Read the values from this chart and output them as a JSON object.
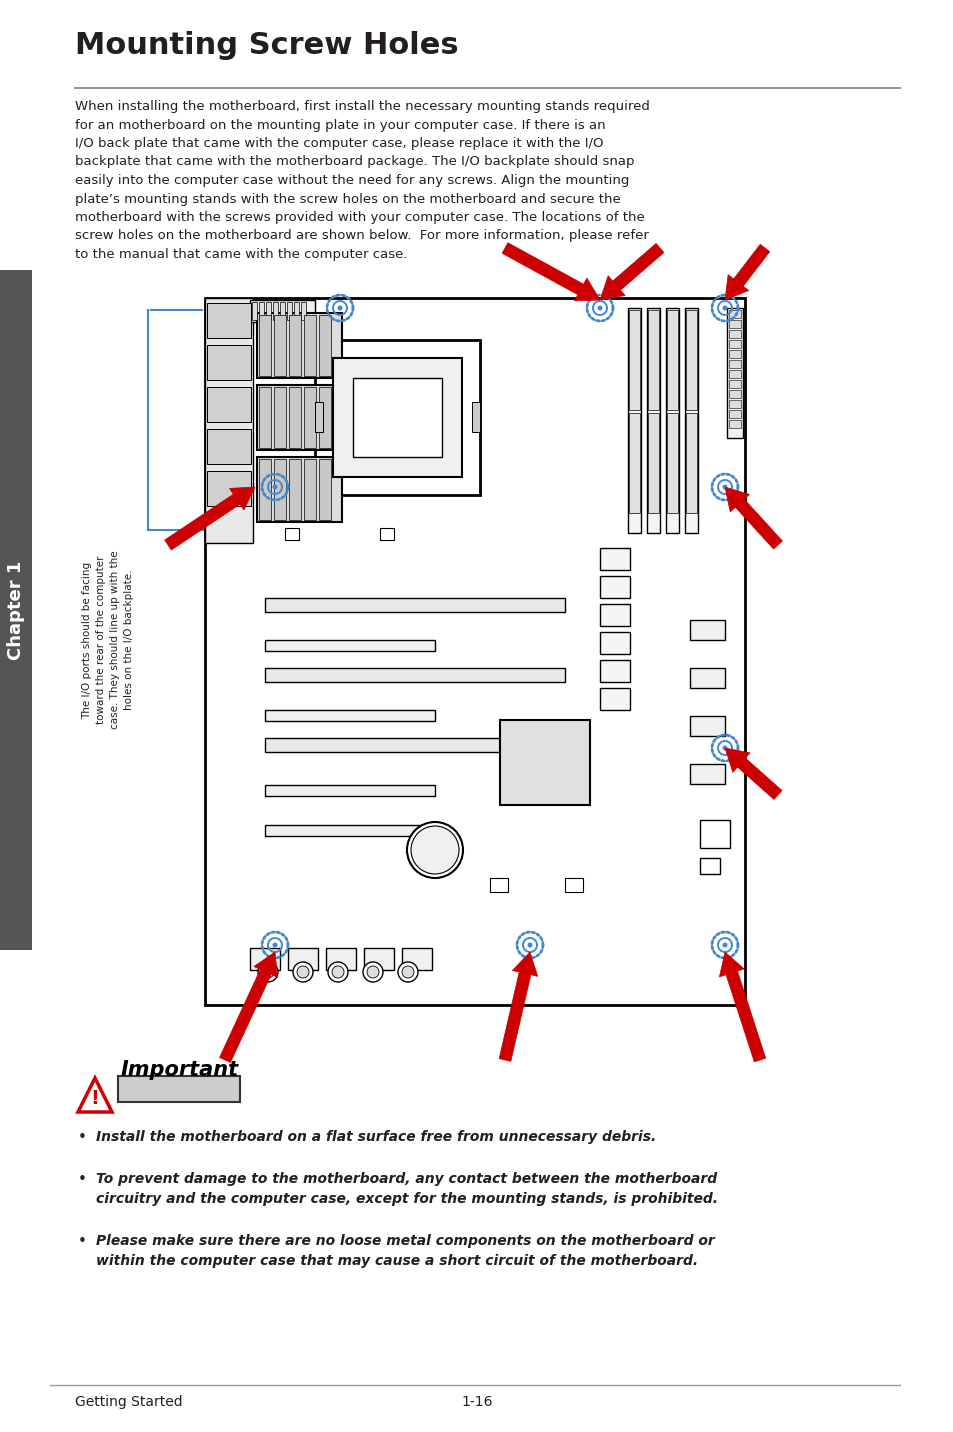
{
  "title": "Mounting Screw Holes",
  "body_text": "When installing the motherboard, first install the necessary mounting stands required\nfor an motherboard on the mounting plate in your computer case. If there is an\nI/O back plate that came with the computer case, please replace it with the I/O\nbackplate that came with the motherboard package. The I/O backplate should snap\neasily into the computer case without the need for any screws. Align the mounting\nplate’s mounting stands with the screw holes on the motherboard and secure the\nmotherboard with the screws provided with your computer case. The locations of the\nscrew holes on the motherboard are shown below.  For more information, please refer\nto the manual that came with the computer case.",
  "rotated_text": "The I/O ports should be facing\ntoward the rear of the computer\ncase. They should line up with the\nholes on the I/O backplate.",
  "important_label": "Important",
  "bullet1": "Install the motherboard on a flat surface free from unnecessary debris.",
  "bullet2": "To prevent damage to the motherboard, any contact between the motherboard\ncircuitry and the computer case, except for the mounting stands, is prohibited.",
  "bullet3": "Please make sure there are no loose metal components on the motherboard or\nwithin the computer case that may cause a short circuit of the motherboard.",
  "footer_left": "Getting Started",
  "footer_center": "1-16",
  "chapter_label": "Chapter 1",
  "bg_color": "#ffffff",
  "text_color": "#231f20",
  "title_color": "#231f20",
  "sidebar_bg": "#555555",
  "line_color": "#999999",
  "red_color": "#cc0000",
  "blue_color": "#4488cc"
}
